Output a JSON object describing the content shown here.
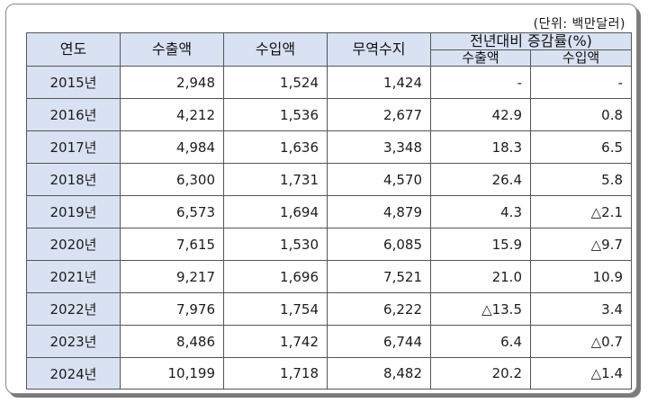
{
  "unit_note": "(단위: 백만달러)",
  "headers": {
    "year": "연도",
    "exports": "수출액",
    "imports": "수입액",
    "balance": "무역수지",
    "yoy_group": "전년대비 증감률(%)",
    "yoy_exports": "수출액",
    "yoy_imports": "수입액"
  },
  "rows": [
    {
      "year": "2015년",
      "exports": "2,948",
      "imports": "1,524",
      "balance": "1,424",
      "yoy_exports": "-",
      "yoy_imports": "-"
    },
    {
      "year": "2016년",
      "exports": "4,212",
      "imports": "1,536",
      "balance": "2,677",
      "yoy_exports": "42.9",
      "yoy_imports": "0.8"
    },
    {
      "year": "2017년",
      "exports": "4,984",
      "imports": "1,636",
      "balance": "3,348",
      "yoy_exports": "18.3",
      "yoy_imports": "6.5"
    },
    {
      "year": "2018년",
      "exports": "6,300",
      "imports": "1,731",
      "balance": "4,570",
      "yoy_exports": "26.4",
      "yoy_imports": "5.8"
    },
    {
      "year": "2019년",
      "exports": "6,573",
      "imports": "1,694",
      "balance": "4,879",
      "yoy_exports": "4.3",
      "yoy_imports": "△2.1"
    },
    {
      "year": "2020년",
      "exports": "7,615",
      "imports": "1,530",
      "balance": "6,085",
      "yoy_exports": "15.9",
      "yoy_imports": "△9.7"
    },
    {
      "year": "2021년",
      "exports": "9,217",
      "imports": "1,696",
      "balance": "7,521",
      "yoy_exports": "21.0",
      "yoy_imports": "10.9"
    },
    {
      "year": "2022년",
      "exports": "7,976",
      "imports": "1,754",
      "balance": "6,222",
      "yoy_exports": "△13.5",
      "yoy_imports": "3.4"
    },
    {
      "year": "2023년",
      "exports": "8,486",
      "imports": "1,742",
      "balance": "6,744",
      "yoy_exports": "6.4",
      "yoy_imports": "△0.7"
    },
    {
      "year": "2024년",
      "exports": "10,199",
      "imports": "1,718",
      "balance": "8,482",
      "yoy_exports": "20.2",
      "yoy_imports": "△1.4"
    }
  ],
  "colors": {
    "header_bg": "#d9e2f3",
    "border": "#555555",
    "frame_border": "#8a8a8a"
  }
}
